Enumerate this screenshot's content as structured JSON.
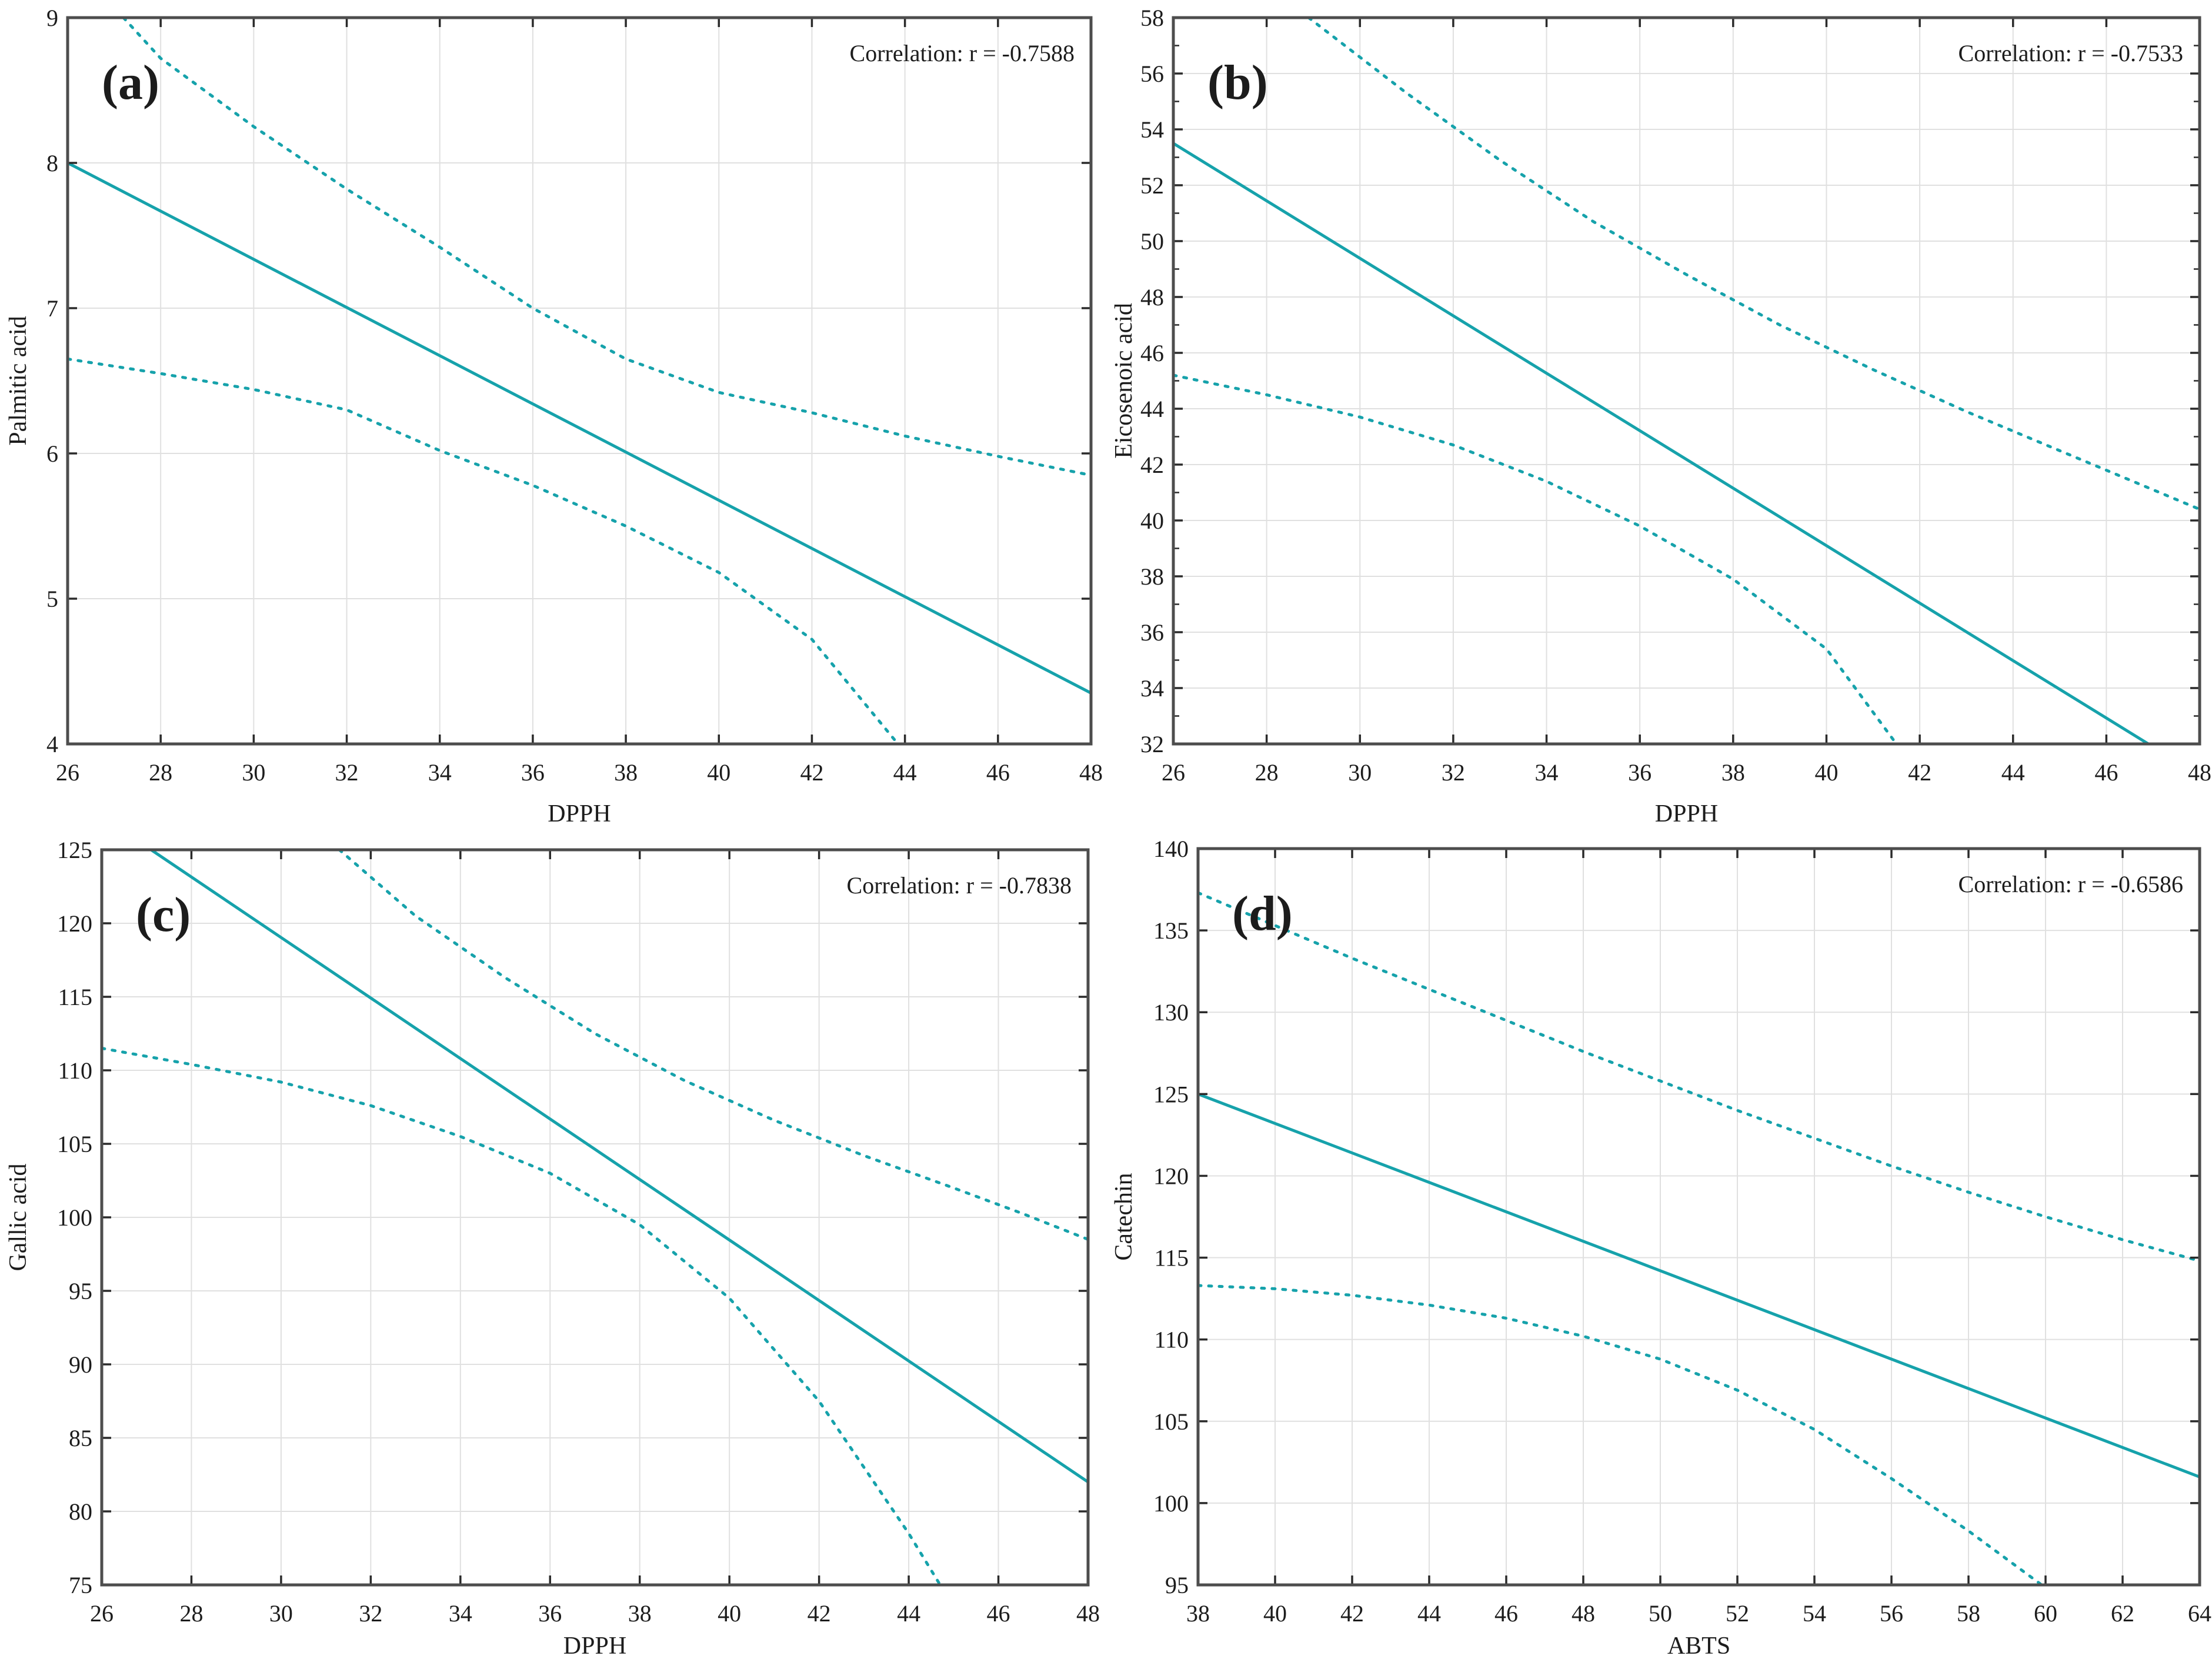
{
  "figure": {
    "background": "#ffffff",
    "description": "Four regression scatter-fit panels with 95% confidence bands"
  },
  "style": {
    "line_color": "#16a2ab",
    "grid_color": "#e0e0e0",
    "border_color": "#4d4d4d",
    "tick_color": "#2a2a2a",
    "text_color": "#1c1c1c",
    "plot_background": "#ffffff"
  },
  "chart_data": [
    {
      "id": "a",
      "type": "line",
      "panel_label": "(a)",
      "correlation_text": "Correlation: r = -0.7588",
      "xlabel": "DPPH",
      "ylabel": "Palmitic acid",
      "xlim": [
        26,
        48
      ],
      "xtick_step": 2,
      "ylim": [
        4,
        9
      ],
      "ytick_step": 1,
      "y_minor_step": null,
      "grid": true,
      "legend": "none",
      "series": [
        {
          "name": "regression-line",
          "style": "solid",
          "points": [
            [
              26,
              8.0
            ],
            [
              48,
              4.35
            ]
          ]
        },
        {
          "name": "confidence-upper",
          "style": "dashed",
          "points": [
            [
              27.2,
              9.0
            ],
            [
              28,
              8.72
            ],
            [
              30,
              8.25
            ],
            [
              32,
              7.82
            ],
            [
              34,
              7.42
            ],
            [
              36,
              7.0
            ],
            [
              38,
              6.65
            ],
            [
              40,
              6.42
            ],
            [
              42,
              6.28
            ],
            [
              44,
              6.12
            ],
            [
              46,
              5.98
            ],
            [
              48,
              5.85
            ]
          ]
        },
        {
          "name": "confidence-lower",
          "style": "dashed",
          "points": [
            [
              26,
              6.65
            ],
            [
              28,
              6.55
            ],
            [
              30,
              6.44
            ],
            [
              32,
              6.3
            ],
            [
              34,
              6.02
            ],
            [
              36,
              5.78
            ],
            [
              38,
              5.5
            ],
            [
              40,
              5.18
            ],
            [
              42,
              4.72
            ],
            [
              43.85,
              4.0
            ]
          ]
        }
      ]
    },
    {
      "id": "b",
      "type": "line",
      "panel_label": "(b)",
      "correlation_text": "Correlation: r = -0.7533",
      "xlabel": "DPPH",
      "ylabel": "Eicosenoic acid",
      "xlim": [
        26,
        48
      ],
      "xtick_step": 2,
      "ylim": [
        32,
        58
      ],
      "ytick_step": 2,
      "y_minor_step": 1,
      "grid": true,
      "legend": "none",
      "series": [
        {
          "name": "regression-line",
          "style": "solid",
          "points": [
            [
              26,
              53.5
            ],
            [
              46.9,
              32.0
            ]
          ]
        },
        {
          "name": "confidence-upper",
          "style": "dashed",
          "points": [
            [
              28.9,
              58.0
            ],
            [
              31,
              55.3
            ],
            [
              33,
              52.9
            ],
            [
              35,
              50.7
            ],
            [
              37,
              48.8
            ],
            [
              39,
              47.0
            ],
            [
              41,
              45.4
            ],
            [
              43,
              43.9
            ],
            [
              45,
              42.5
            ],
            [
              48,
              40.4
            ]
          ]
        },
        {
          "name": "confidence-lower",
          "style": "dashed",
          "points": [
            [
              26,
              45.2
            ],
            [
              28,
              44.5
            ],
            [
              30,
              43.7
            ],
            [
              32,
              42.7
            ],
            [
              34,
              41.4
            ],
            [
              36,
              39.8
            ],
            [
              38,
              37.9
            ],
            [
              40,
              35.4
            ],
            [
              41.5,
              32.0
            ]
          ]
        }
      ]
    },
    {
      "id": "c",
      "type": "line",
      "panel_label": "(c)",
      "correlation_text": "Correlation: r = -0.7838",
      "xlabel": "DPPH",
      "ylabel": "Gallic acid",
      "xlim": [
        26,
        48
      ],
      "xtick_step": 2,
      "ylim": [
        75,
        125
      ],
      "ytick_step": 5,
      "y_minor_step": null,
      "grid": true,
      "legend": "none",
      "series": [
        {
          "name": "regression-line",
          "style": "solid",
          "points": [
            [
              27.1,
              125.0
            ],
            [
              48,
              82.0
            ]
          ]
        },
        {
          "name": "confidence-upper",
          "style": "dashed",
          "points": [
            [
              31.3,
              125.0
            ],
            [
              33,
              120.5
            ],
            [
              35,
              116.3
            ],
            [
              37,
              112.5
            ],
            [
              39,
              109.3
            ],
            [
              41,
              106.6
            ],
            [
              43,
              104.2
            ],
            [
              45,
              102.0
            ],
            [
              46.5,
              100.3
            ],
            [
              48,
              98.5
            ]
          ]
        },
        {
          "name": "confidence-lower",
          "style": "dashed",
          "points": [
            [
              26,
              111.5
            ],
            [
              28,
              110.4
            ],
            [
              30,
              109.2
            ],
            [
              32,
              107.6
            ],
            [
              34,
              105.5
            ],
            [
              36,
              103.0
            ],
            [
              38,
              99.5
            ],
            [
              40,
              94.5
            ],
            [
              42,
              87.5
            ],
            [
              44,
              78.5
            ],
            [
              44.7,
              75.0
            ]
          ]
        }
      ]
    },
    {
      "id": "d",
      "type": "line",
      "panel_label": "(d)",
      "correlation_text": "Correlation: r = -0.6586",
      "xlabel": "ABTS",
      "ylabel": "Catechin",
      "xlim": [
        38,
        64
      ],
      "xtick_step": 2,
      "ylim": [
        95,
        140
      ],
      "ytick_step": 5,
      "y_minor_step": null,
      "grid": true,
      "legend": "none",
      "series": [
        {
          "name": "regression-line",
          "style": "solid",
          "points": [
            [
              38,
              125.0
            ],
            [
              64,
              101.6
            ]
          ]
        },
        {
          "name": "confidence-upper",
          "style": "dashed",
          "points": [
            [
              38,
              137.3
            ],
            [
              40,
              135.3
            ],
            [
              42,
              133.3
            ],
            [
              44,
              131.4
            ],
            [
              46,
              129.5
            ],
            [
              48,
              127.6
            ],
            [
              50,
              125.8
            ],
            [
              52,
              124.0
            ],
            [
              54,
              122.3
            ],
            [
              56,
              120.6
            ],
            [
              58,
              119.0
            ],
            [
              60,
              117.5
            ],
            [
              62,
              116.1
            ],
            [
              64,
              114.8
            ]
          ]
        },
        {
          "name": "confidence-lower",
          "style": "dashed",
          "points": [
            [
              38,
              113.3
            ],
            [
              40,
              113.1
            ],
            [
              42,
              112.7
            ],
            [
              44,
              112.1
            ],
            [
              46,
              111.3
            ],
            [
              48,
              110.2
            ],
            [
              50,
              108.8
            ],
            [
              52,
              106.9
            ],
            [
              54,
              104.5
            ],
            [
              56,
              101.5
            ],
            [
              58,
              98.3
            ],
            [
              59.9,
              95.0
            ]
          ]
        }
      ]
    }
  ]
}
